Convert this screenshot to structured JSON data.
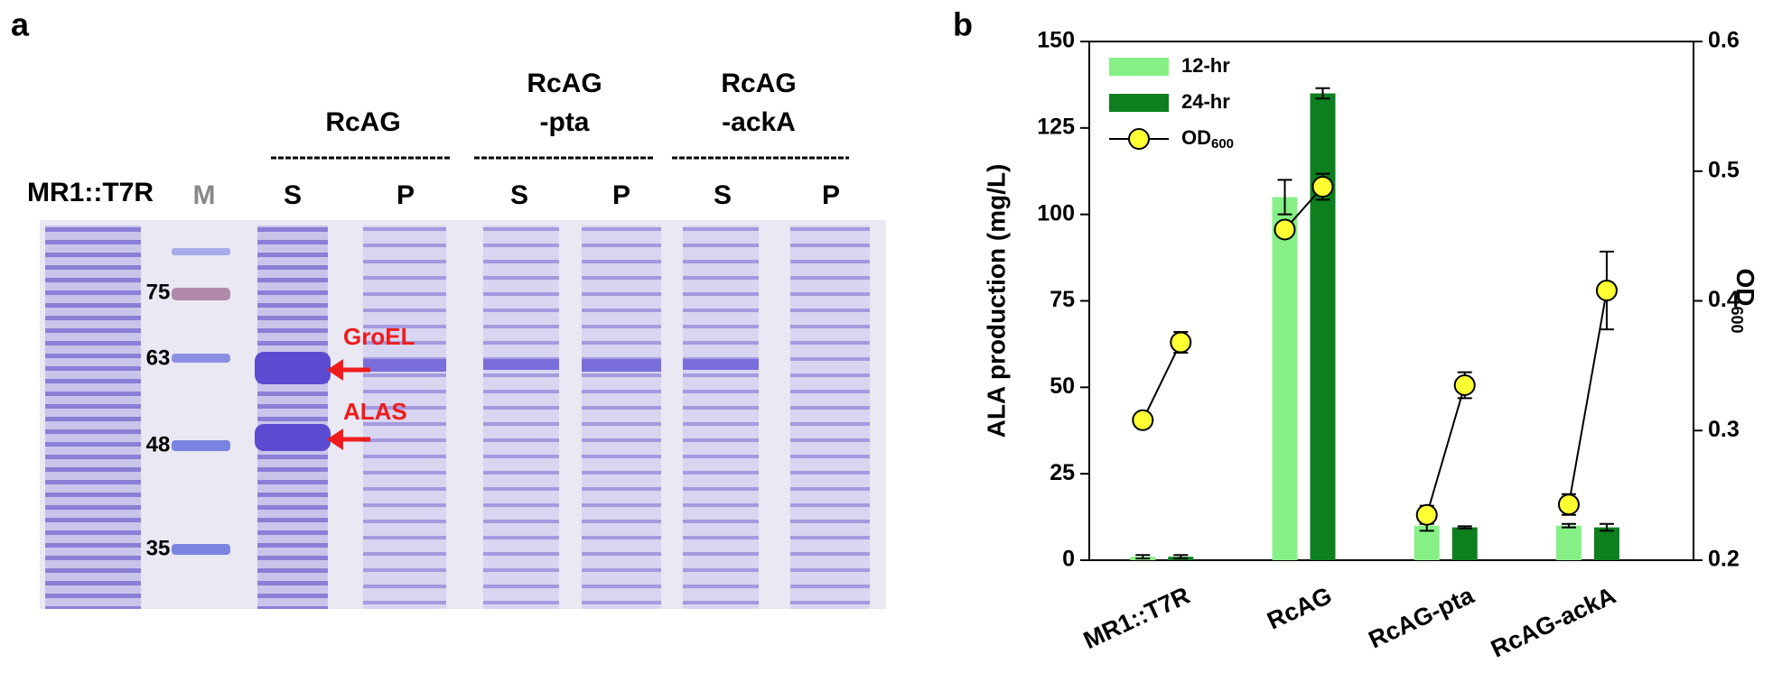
{
  "gel": {
    "panel_label": "a",
    "strain_label": "MR1::T7R",
    "marker_lane_label": "M",
    "groups": [
      {
        "lines": [
          "RcAG"
        ]
      },
      {
        "lines": [
          "RcAG",
          "-pta"
        ]
      },
      {
        "lines": [
          "RcAG",
          "-ackA"
        ]
      }
    ],
    "lane_labels": [
      "S",
      "P",
      "S",
      "P",
      "S",
      "P"
    ],
    "marker_sizes": [
      75,
      63,
      48,
      35
    ],
    "annotations": [
      "GroEL",
      "ALAS"
    ]
  },
  "chart_data": {
    "type": "bar",
    "panel_label": "b",
    "ylabel": "ALA production (mg/L)",
    "y2label": "OD",
    "y2label_sub": "600",
    "categories": [
      "MR1::T7R",
      "RcAG",
      "RcAG-pta",
      "RcAG-ackA"
    ],
    "series": [
      {
        "name": "12-hr",
        "color": "#86f086",
        "values": [
          1,
          105,
          10,
          10
        ],
        "errors": [
          0.5,
          5,
          1.5,
          0.5
        ]
      },
      {
        "name": "24-hr",
        "color": "#0d7f1f",
        "values": [
          1,
          135,
          9.5,
          9.5
        ],
        "errors": [
          0.5,
          1.5,
          0.3,
          1
        ]
      },
      {
        "name": "OD",
        "name_sub": "600",
        "type": "line",
        "axis": "y2",
        "color": "#ffff33",
        "values": [
          [
            0.308,
            0.368
          ],
          [
            0.455,
            0.488
          ],
          [
            0.235,
            0.335
          ],
          [
            0.243,
            0.408
          ]
        ],
        "errors": [
          [
            0.003,
            0.008
          ],
          [
            0.004,
            0.01
          ],
          [
            0.007,
            0.01
          ],
          [
            0.008,
            0.03
          ]
        ]
      }
    ],
    "ylim": [
      0,
      150
    ],
    "yticks": [
      0,
      25,
      50,
      75,
      100,
      125,
      150
    ],
    "y2lim": [
      0.2,
      0.6
    ],
    "y2ticks": [
      0.2,
      0.3,
      0.4,
      0.5,
      0.6
    ],
    "legend": "upper left"
  }
}
